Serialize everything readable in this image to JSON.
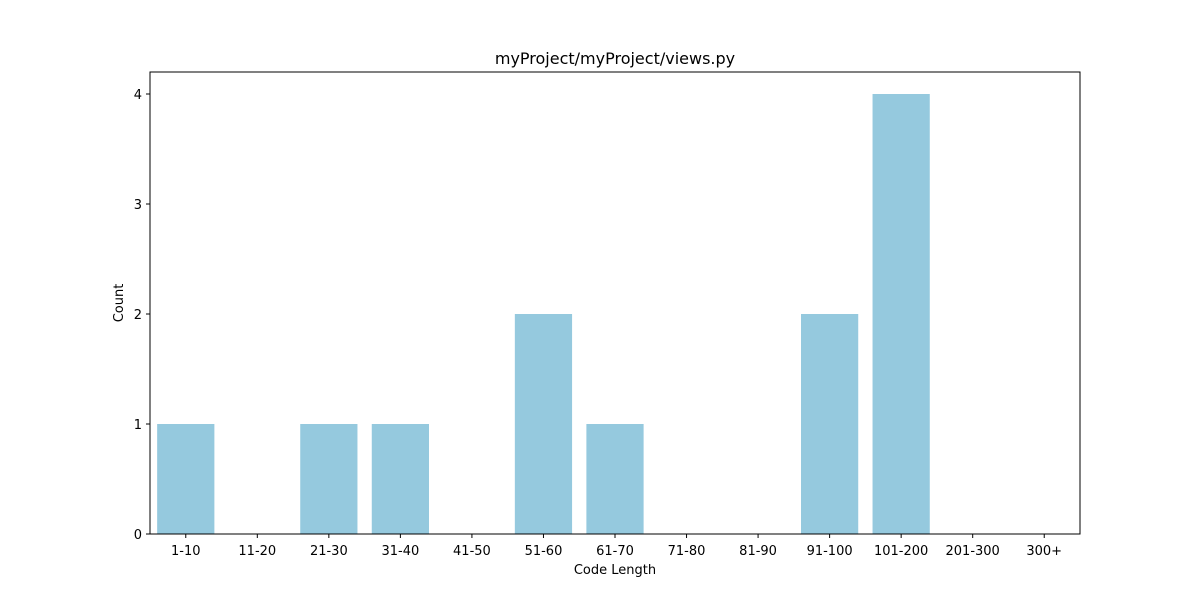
{
  "chart_data": {
    "type": "bar",
    "title": "myProject/myProject/views.py",
    "xlabel": "Code Length",
    "ylabel": "Count",
    "categories": [
      "1-10",
      "11-20",
      "21-30",
      "31-40",
      "41-50",
      "51-60",
      "61-70",
      "71-80",
      "81-90",
      "91-100",
      "101-200",
      "201-300",
      "300+"
    ],
    "values": [
      1,
      0,
      1,
      1,
      0,
      2,
      1,
      0,
      0,
      2,
      4,
      0,
      0
    ],
    "yticks": [
      0,
      1,
      2,
      3,
      4
    ],
    "ylim": [
      0,
      4.2
    ],
    "grid": false,
    "bar_color": "#95c9de"
  }
}
